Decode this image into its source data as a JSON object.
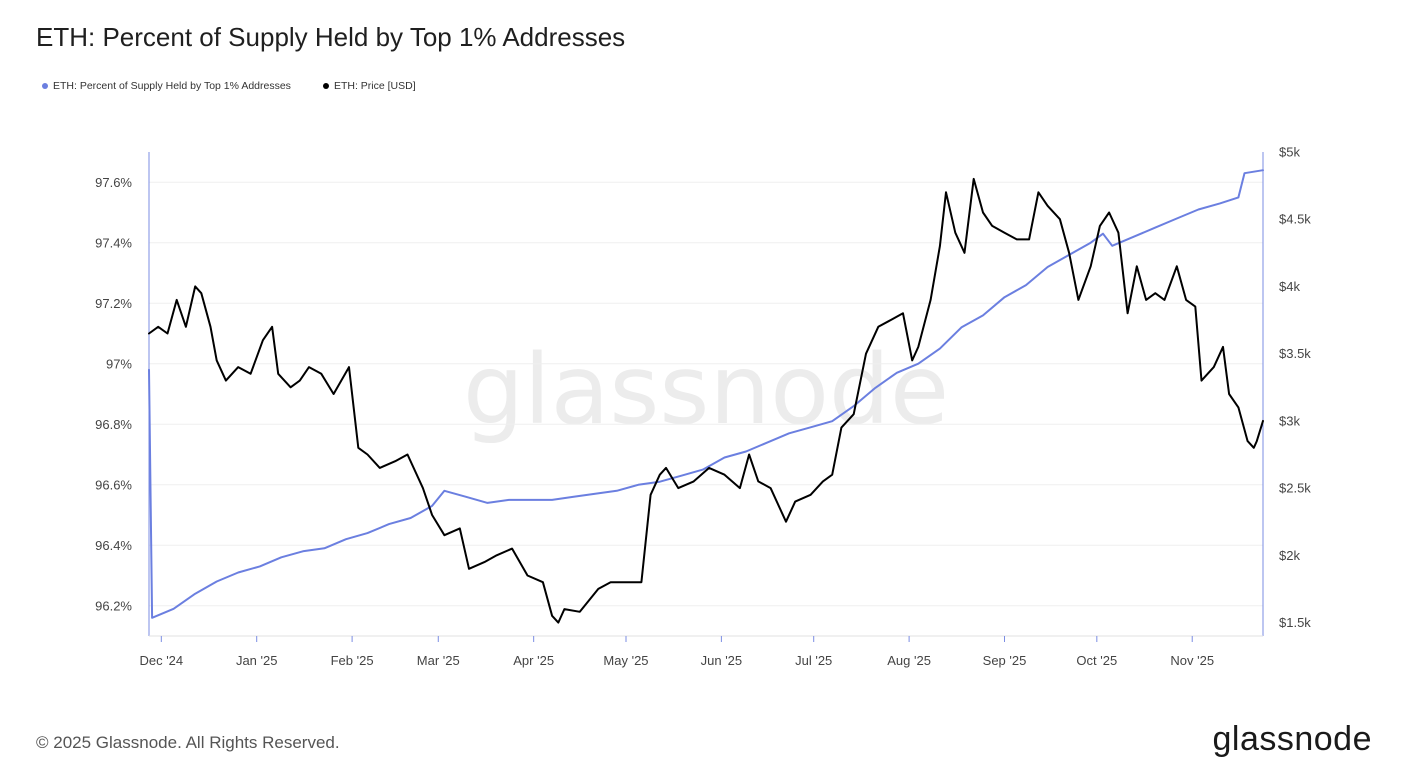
{
  "title": "ETH: Percent of Supply Held by Top 1% Addresses",
  "legend": [
    {
      "label": "ETH: Percent of Supply Held by Top 1% Addresses",
      "color": "#6b7fe0"
    },
    {
      "label": "ETH: Price [USD]",
      "color": "#000000"
    }
  ],
  "watermark": "glassnode",
  "footer": {
    "copyright": "© 2025 Glassnode. All Rights Reserved.",
    "brand": "glassnode"
  },
  "chart_data": {
    "type": "line",
    "x_tick_labels": [
      "Dec '24",
      "Jan '25",
      "Feb '25",
      "Mar '25",
      "Apr '25",
      "May '25",
      "Jun '25",
      "Jul '25",
      "Aug '25",
      "Sep '25",
      "Oct '25",
      "Nov '25"
    ],
    "x_tick_dates": [
      "2024-12-01",
      "2025-01-01",
      "2025-02-01",
      "2025-03-01",
      "2025-04-01",
      "2025-05-01",
      "2025-06-01",
      "2025-07-01",
      "2025-08-01",
      "2025-09-01",
      "2025-10-01",
      "2025-11-01"
    ],
    "x_range": [
      "2024-11-27",
      "2025-11-24"
    ],
    "left_axis": {
      "ylim": [
        96.1,
        97.7
      ],
      "ticks": [
        96.2,
        96.4,
        96.6,
        96.8,
        97.0,
        97.2,
        97.4,
        97.6
      ],
      "tick_labels": [
        "96.2%",
        "96.4%",
        "96.6%",
        "96.8%",
        "97%",
        "97.2%",
        "97.4%",
        "97.6%"
      ]
    },
    "right_axis": {
      "ylim": [
        1400,
        5000
      ],
      "ticks": [
        1500,
        2000,
        2500,
        3000,
        3500,
        4000,
        4500,
        5000
      ],
      "tick_labels": [
        "$1.5k",
        "$2k",
        "$2.5k",
        "$3k",
        "$3.5k",
        "$4k",
        "$4.5k",
        "$5k"
      ]
    },
    "grid": "horizontal",
    "series": [
      {
        "name": "ETH: Percent of Supply Held by Top 1% Addresses",
        "axis": "left",
        "color": "#6b7fe0",
        "points": [
          [
            "2024-11-27",
            96.98
          ],
          [
            "2024-11-28",
            96.16
          ],
          [
            "2024-12-05",
            96.19
          ],
          [
            "2024-12-12",
            96.24
          ],
          [
            "2024-12-19",
            96.28
          ],
          [
            "2024-12-26",
            96.31
          ],
          [
            "2025-01-02",
            96.33
          ],
          [
            "2025-01-09",
            96.36
          ],
          [
            "2025-01-16",
            96.38
          ],
          [
            "2025-01-23",
            96.39
          ],
          [
            "2025-01-30",
            96.42
          ],
          [
            "2025-02-06",
            96.44
          ],
          [
            "2025-02-13",
            96.47
          ],
          [
            "2025-02-20",
            96.49
          ],
          [
            "2025-02-27",
            96.53
          ],
          [
            "2025-03-03",
            96.58
          ],
          [
            "2025-03-10",
            96.56
          ],
          [
            "2025-03-17",
            96.54
          ],
          [
            "2025-03-24",
            96.55
          ],
          [
            "2025-03-31",
            96.55
          ],
          [
            "2025-04-07",
            96.55
          ],
          [
            "2025-04-14",
            96.56
          ],
          [
            "2025-04-21",
            96.57
          ],
          [
            "2025-04-28",
            96.58
          ],
          [
            "2025-05-05",
            96.6
          ],
          [
            "2025-05-12",
            96.61
          ],
          [
            "2025-05-19",
            96.63
          ],
          [
            "2025-05-26",
            96.65
          ],
          [
            "2025-06-02",
            96.69
          ],
          [
            "2025-06-09",
            96.71
          ],
          [
            "2025-06-16",
            96.74
          ],
          [
            "2025-06-23",
            96.77
          ],
          [
            "2025-06-30",
            96.79
          ],
          [
            "2025-07-07",
            96.81
          ],
          [
            "2025-07-14",
            96.86
          ],
          [
            "2025-07-21",
            96.92
          ],
          [
            "2025-07-28",
            96.97
          ],
          [
            "2025-08-04",
            97.0
          ],
          [
            "2025-08-11",
            97.05
          ],
          [
            "2025-08-18",
            97.12
          ],
          [
            "2025-08-25",
            97.16
          ],
          [
            "2025-09-01",
            97.22
          ],
          [
            "2025-09-08",
            97.26
          ],
          [
            "2025-09-15",
            97.32
          ],
          [
            "2025-09-22",
            97.36
          ],
          [
            "2025-09-29",
            97.4
          ],
          [
            "2025-10-03",
            97.43
          ],
          [
            "2025-10-06",
            97.39
          ],
          [
            "2025-10-13",
            97.42
          ],
          [
            "2025-10-20",
            97.45
          ],
          [
            "2025-10-27",
            97.48
          ],
          [
            "2025-11-03",
            97.51
          ],
          [
            "2025-11-10",
            97.53
          ],
          [
            "2025-11-16",
            97.55
          ],
          [
            "2025-11-18",
            97.63
          ],
          [
            "2025-11-24",
            97.64
          ]
        ]
      },
      {
        "name": "ETH: Price [USD]",
        "axis": "right",
        "color": "#000000",
        "points": [
          [
            "2024-11-27",
            3650
          ],
          [
            "2024-11-30",
            3700
          ],
          [
            "2024-12-03",
            3650
          ],
          [
            "2024-12-06",
            3900
          ],
          [
            "2024-12-09",
            3700
          ],
          [
            "2024-12-12",
            4000
          ],
          [
            "2024-12-14",
            3950
          ],
          [
            "2024-12-17",
            3700
          ],
          [
            "2024-12-19",
            3450
          ],
          [
            "2024-12-22",
            3300
          ],
          [
            "2024-12-26",
            3400
          ],
          [
            "2024-12-30",
            3350
          ],
          [
            "2025-01-03",
            3600
          ],
          [
            "2025-01-06",
            3700
          ],
          [
            "2025-01-08",
            3350
          ],
          [
            "2025-01-12",
            3250
          ],
          [
            "2025-01-15",
            3300
          ],
          [
            "2025-01-18",
            3400
          ],
          [
            "2025-01-22",
            3350
          ],
          [
            "2025-01-26",
            3200
          ],
          [
            "2025-01-31",
            3400
          ],
          [
            "2025-02-03",
            2800
          ],
          [
            "2025-02-06",
            2750
          ],
          [
            "2025-02-10",
            2650
          ],
          [
            "2025-02-15",
            2700
          ],
          [
            "2025-02-19",
            2750
          ],
          [
            "2025-02-24",
            2500
          ],
          [
            "2025-02-27",
            2300
          ],
          [
            "2025-03-03",
            2150
          ],
          [
            "2025-03-08",
            2200
          ],
          [
            "2025-03-11",
            1900
          ],
          [
            "2025-03-16",
            1950
          ],
          [
            "2025-03-20",
            2000
          ],
          [
            "2025-03-25",
            2050
          ],
          [
            "2025-03-30",
            1850
          ],
          [
            "2025-04-04",
            1800
          ],
          [
            "2025-04-07",
            1550
          ],
          [
            "2025-04-09",
            1500
          ],
          [
            "2025-04-11",
            1600
          ],
          [
            "2025-04-16",
            1580
          ],
          [
            "2025-04-22",
            1750
          ],
          [
            "2025-04-26",
            1800
          ],
          [
            "2025-04-30",
            1800
          ],
          [
            "2025-05-06",
            1800
          ],
          [
            "2025-05-09",
            2450
          ],
          [
            "2025-05-12",
            2600
          ],
          [
            "2025-05-14",
            2650
          ],
          [
            "2025-05-18",
            2500
          ],
          [
            "2025-05-23",
            2550
          ],
          [
            "2025-05-28",
            2650
          ],
          [
            "2025-06-02",
            2600
          ],
          [
            "2025-06-07",
            2500
          ],
          [
            "2025-06-10",
            2750
          ],
          [
            "2025-06-13",
            2550
          ],
          [
            "2025-06-17",
            2500
          ],
          [
            "2025-06-22",
            2250
          ],
          [
            "2025-06-25",
            2400
          ],
          [
            "2025-06-30",
            2450
          ],
          [
            "2025-07-04",
            2550
          ],
          [
            "2025-07-07",
            2600
          ],
          [
            "2025-07-10",
            2950
          ],
          [
            "2025-07-14",
            3050
          ],
          [
            "2025-07-18",
            3500
          ],
          [
            "2025-07-22",
            3700
          ],
          [
            "2025-07-26",
            3750
          ],
          [
            "2025-07-30",
            3800
          ],
          [
            "2025-08-02",
            3450
          ],
          [
            "2025-08-04",
            3550
          ],
          [
            "2025-08-08",
            3900
          ],
          [
            "2025-08-11",
            4300
          ],
          [
            "2025-08-13",
            4700
          ],
          [
            "2025-08-16",
            4400
          ],
          [
            "2025-08-19",
            4250
          ],
          [
            "2025-08-22",
            4800
          ],
          [
            "2025-08-25",
            4550
          ],
          [
            "2025-08-28",
            4450
          ],
          [
            "2025-09-01",
            4400
          ],
          [
            "2025-09-05",
            4350
          ],
          [
            "2025-09-09",
            4350
          ],
          [
            "2025-09-12",
            4700
          ],
          [
            "2025-09-15",
            4600
          ],
          [
            "2025-09-19",
            4500
          ],
          [
            "2025-09-22",
            4250
          ],
          [
            "2025-09-25",
            3900
          ],
          [
            "2025-09-29",
            4150
          ],
          [
            "2025-10-02",
            4450
          ],
          [
            "2025-10-05",
            4550
          ],
          [
            "2025-10-08",
            4400
          ],
          [
            "2025-10-11",
            3800
          ],
          [
            "2025-10-14",
            4150
          ],
          [
            "2025-10-17",
            3900
          ],
          [
            "2025-10-20",
            3950
          ],
          [
            "2025-10-23",
            3900
          ],
          [
            "2025-10-27",
            4150
          ],
          [
            "2025-10-30",
            3900
          ],
          [
            "2025-11-02",
            3850
          ],
          [
            "2025-11-04",
            3300
          ],
          [
            "2025-11-08",
            3400
          ],
          [
            "2025-11-11",
            3550
          ],
          [
            "2025-11-13",
            3200
          ],
          [
            "2025-11-16",
            3100
          ],
          [
            "2025-11-19",
            2850
          ],
          [
            "2025-11-21",
            2800
          ],
          [
            "2025-11-22",
            2850
          ],
          [
            "2025-11-24",
            3000
          ]
        ]
      }
    ]
  }
}
